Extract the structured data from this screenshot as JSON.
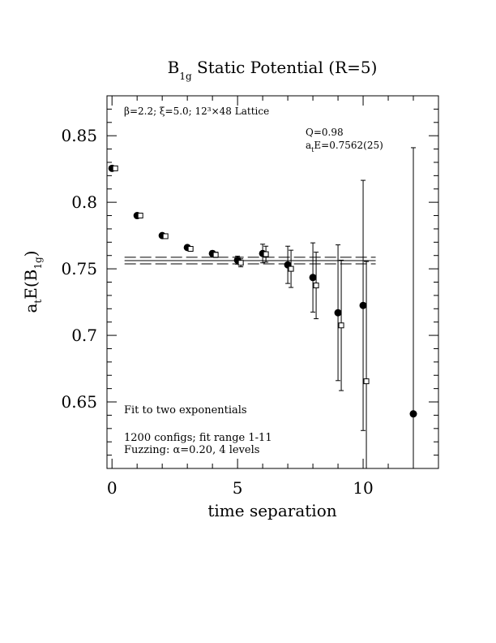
{
  "chart_data": {
    "type": "scatter",
    "title": {
      "main": "B",
      "sub": "1g",
      "rest": " Static Potential (R=5)"
    },
    "xlabel": "time separation",
    "ylabel": {
      "a": "a",
      "a_sub": "t",
      "mid": "E(B",
      "b_sub": "1g",
      "end": ")"
    },
    "xlim": [
      -0.2,
      13.0
    ],
    "ylim": [
      0.6,
      0.88
    ],
    "xticks": [
      {
        "value": 0,
        "label": "0"
      },
      {
        "value": 5,
        "label": "5"
      },
      {
        "value": 10,
        "label": "10"
      }
    ],
    "yticks": [
      {
        "value": 0.65,
        "label": "0.65"
      },
      {
        "value": 0.7,
        "label": "0.7"
      },
      {
        "value": 0.75,
        "label": "0.75"
      },
      {
        "value": 0.8,
        "label": "0.8"
      },
      {
        "value": 0.85,
        "label": "0.85"
      }
    ],
    "annotations": {
      "lattice": "β=2.2; ξ=5.0; 12³×48 Lattice",
      "q": "Q=0.98",
      "fit_prefix": "a",
      "fit_sub": "t",
      "fit_value": "E=0.7562(25)",
      "method": "Fit to two exponentials",
      "configs": "1200 configs; fit range 1-11",
      "fuzzing": "Fuzzing: α=0.20, 4 levels"
    },
    "fit": {
      "value": 0.7562,
      "error": 0.0025,
      "t_range": [
        0.5,
        10.5
      ]
    },
    "series": [
      {
        "marker": "filled-circle",
        "points": [
          {
            "x": 0,
            "y": 0.8255,
            "err": 0.0005
          },
          {
            "x": 1,
            "y": 0.79,
            "err": 0.0008
          },
          {
            "x": 2,
            "y": 0.775,
            "err": 0.001
          },
          {
            "x": 3,
            "y": 0.766,
            "err": 0.0015
          },
          {
            "x": 4,
            "y": 0.7615,
            "err": 0.002
          },
          {
            "x": 5,
            "y": 0.7565,
            "err": 0.003
          },
          {
            "x": 6,
            "y": 0.7615,
            "err": 0.007
          },
          {
            "x": 7,
            "y": 0.753,
            "err": 0.014
          },
          {
            "x": 8,
            "y": 0.7435,
            "err": 0.026
          },
          {
            "x": 9,
            "y": 0.717,
            "err": 0.051
          },
          {
            "x": 10,
            "y": 0.7225,
            "err": 0.094
          },
          {
            "x": 12,
            "y": 0.641,
            "err": 0.2
          }
        ]
      },
      {
        "marker": "open-square",
        "points": [
          {
            "x": 0,
            "y": 0.8255,
            "err": 0.0005
          },
          {
            "x": 1,
            "y": 0.79,
            "err": 0.0008
          },
          {
            "x": 2,
            "y": 0.7745,
            "err": 0.001
          },
          {
            "x": 3,
            "y": 0.765,
            "err": 0.0015
          },
          {
            "x": 4,
            "y": 0.7605,
            "err": 0.002
          },
          {
            "x": 5,
            "y": 0.7545,
            "err": 0.003
          },
          {
            "x": 6,
            "y": 0.761,
            "err": 0.006
          },
          {
            "x": 7,
            "y": 0.75,
            "err": 0.014
          },
          {
            "x": 8,
            "y": 0.7375,
            "err": 0.025
          },
          {
            "x": 9,
            "y": 0.7075,
            "err": 0.049
          },
          {
            "x": 10,
            "y": 0.6655,
            "err": 0.09
          }
        ]
      }
    ]
  }
}
